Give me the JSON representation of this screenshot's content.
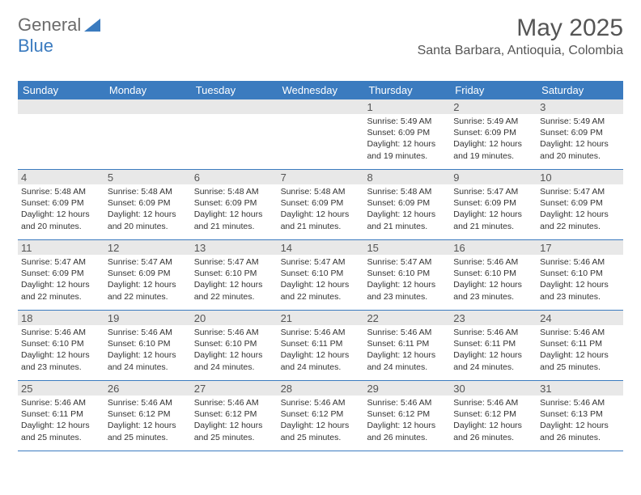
{
  "logo": {
    "text1": "General",
    "text2": "Blue"
  },
  "title": "May 2025",
  "location": "Santa Barbara, Antioquia, Colombia",
  "colors": {
    "header_bg": "#3b7bbf",
    "header_text": "#ffffff",
    "daynum_bg": "#e8e8e8",
    "text": "#333333",
    "title_text": "#555555",
    "border": "#3b7bbf",
    "page_bg": "#ffffff"
  },
  "day_names": [
    "Sunday",
    "Monday",
    "Tuesday",
    "Wednesday",
    "Thursday",
    "Friday",
    "Saturday"
  ],
  "weeks": [
    [
      {
        "empty": true
      },
      {
        "empty": true
      },
      {
        "empty": true
      },
      {
        "empty": true
      },
      {
        "n": "1",
        "sr": "5:49 AM",
        "ss": "6:09 PM",
        "dl": "12 hours and 19 minutes."
      },
      {
        "n": "2",
        "sr": "5:49 AM",
        "ss": "6:09 PM",
        "dl": "12 hours and 19 minutes."
      },
      {
        "n": "3",
        "sr": "5:49 AM",
        "ss": "6:09 PM",
        "dl": "12 hours and 20 minutes."
      }
    ],
    [
      {
        "n": "4",
        "sr": "5:48 AM",
        "ss": "6:09 PM",
        "dl": "12 hours and 20 minutes."
      },
      {
        "n": "5",
        "sr": "5:48 AM",
        "ss": "6:09 PM",
        "dl": "12 hours and 20 minutes."
      },
      {
        "n": "6",
        "sr": "5:48 AM",
        "ss": "6:09 PM",
        "dl": "12 hours and 21 minutes."
      },
      {
        "n": "7",
        "sr": "5:48 AM",
        "ss": "6:09 PM",
        "dl": "12 hours and 21 minutes."
      },
      {
        "n": "8",
        "sr": "5:48 AM",
        "ss": "6:09 PM",
        "dl": "12 hours and 21 minutes."
      },
      {
        "n": "9",
        "sr": "5:47 AM",
        "ss": "6:09 PM",
        "dl": "12 hours and 21 minutes."
      },
      {
        "n": "10",
        "sr": "5:47 AM",
        "ss": "6:09 PM",
        "dl": "12 hours and 22 minutes."
      }
    ],
    [
      {
        "n": "11",
        "sr": "5:47 AM",
        "ss": "6:09 PM",
        "dl": "12 hours and 22 minutes."
      },
      {
        "n": "12",
        "sr": "5:47 AM",
        "ss": "6:09 PM",
        "dl": "12 hours and 22 minutes."
      },
      {
        "n": "13",
        "sr": "5:47 AM",
        "ss": "6:10 PM",
        "dl": "12 hours and 22 minutes."
      },
      {
        "n": "14",
        "sr": "5:47 AM",
        "ss": "6:10 PM",
        "dl": "12 hours and 22 minutes."
      },
      {
        "n": "15",
        "sr": "5:47 AM",
        "ss": "6:10 PM",
        "dl": "12 hours and 23 minutes."
      },
      {
        "n": "16",
        "sr": "5:46 AM",
        "ss": "6:10 PM",
        "dl": "12 hours and 23 minutes."
      },
      {
        "n": "17",
        "sr": "5:46 AM",
        "ss": "6:10 PM",
        "dl": "12 hours and 23 minutes."
      }
    ],
    [
      {
        "n": "18",
        "sr": "5:46 AM",
        "ss": "6:10 PM",
        "dl": "12 hours and 23 minutes."
      },
      {
        "n": "19",
        "sr": "5:46 AM",
        "ss": "6:10 PM",
        "dl": "12 hours and 24 minutes."
      },
      {
        "n": "20",
        "sr": "5:46 AM",
        "ss": "6:10 PM",
        "dl": "12 hours and 24 minutes."
      },
      {
        "n": "21",
        "sr": "5:46 AM",
        "ss": "6:11 PM",
        "dl": "12 hours and 24 minutes."
      },
      {
        "n": "22",
        "sr": "5:46 AM",
        "ss": "6:11 PM",
        "dl": "12 hours and 24 minutes."
      },
      {
        "n": "23",
        "sr": "5:46 AM",
        "ss": "6:11 PM",
        "dl": "12 hours and 24 minutes."
      },
      {
        "n": "24",
        "sr": "5:46 AM",
        "ss": "6:11 PM",
        "dl": "12 hours and 25 minutes."
      }
    ],
    [
      {
        "n": "25",
        "sr": "5:46 AM",
        "ss": "6:11 PM",
        "dl": "12 hours and 25 minutes."
      },
      {
        "n": "26",
        "sr": "5:46 AM",
        "ss": "6:12 PM",
        "dl": "12 hours and 25 minutes."
      },
      {
        "n": "27",
        "sr": "5:46 AM",
        "ss": "6:12 PM",
        "dl": "12 hours and 25 minutes."
      },
      {
        "n": "28",
        "sr": "5:46 AM",
        "ss": "6:12 PM",
        "dl": "12 hours and 25 minutes."
      },
      {
        "n": "29",
        "sr": "5:46 AM",
        "ss": "6:12 PM",
        "dl": "12 hours and 26 minutes."
      },
      {
        "n": "30",
        "sr": "5:46 AM",
        "ss": "6:12 PM",
        "dl": "12 hours and 26 minutes."
      },
      {
        "n": "31",
        "sr": "5:46 AM",
        "ss": "6:13 PM",
        "dl": "12 hours and 26 minutes."
      }
    ]
  ],
  "labels": {
    "sunrise": "Sunrise:",
    "sunset": "Sunset:",
    "daylight": "Daylight:"
  }
}
